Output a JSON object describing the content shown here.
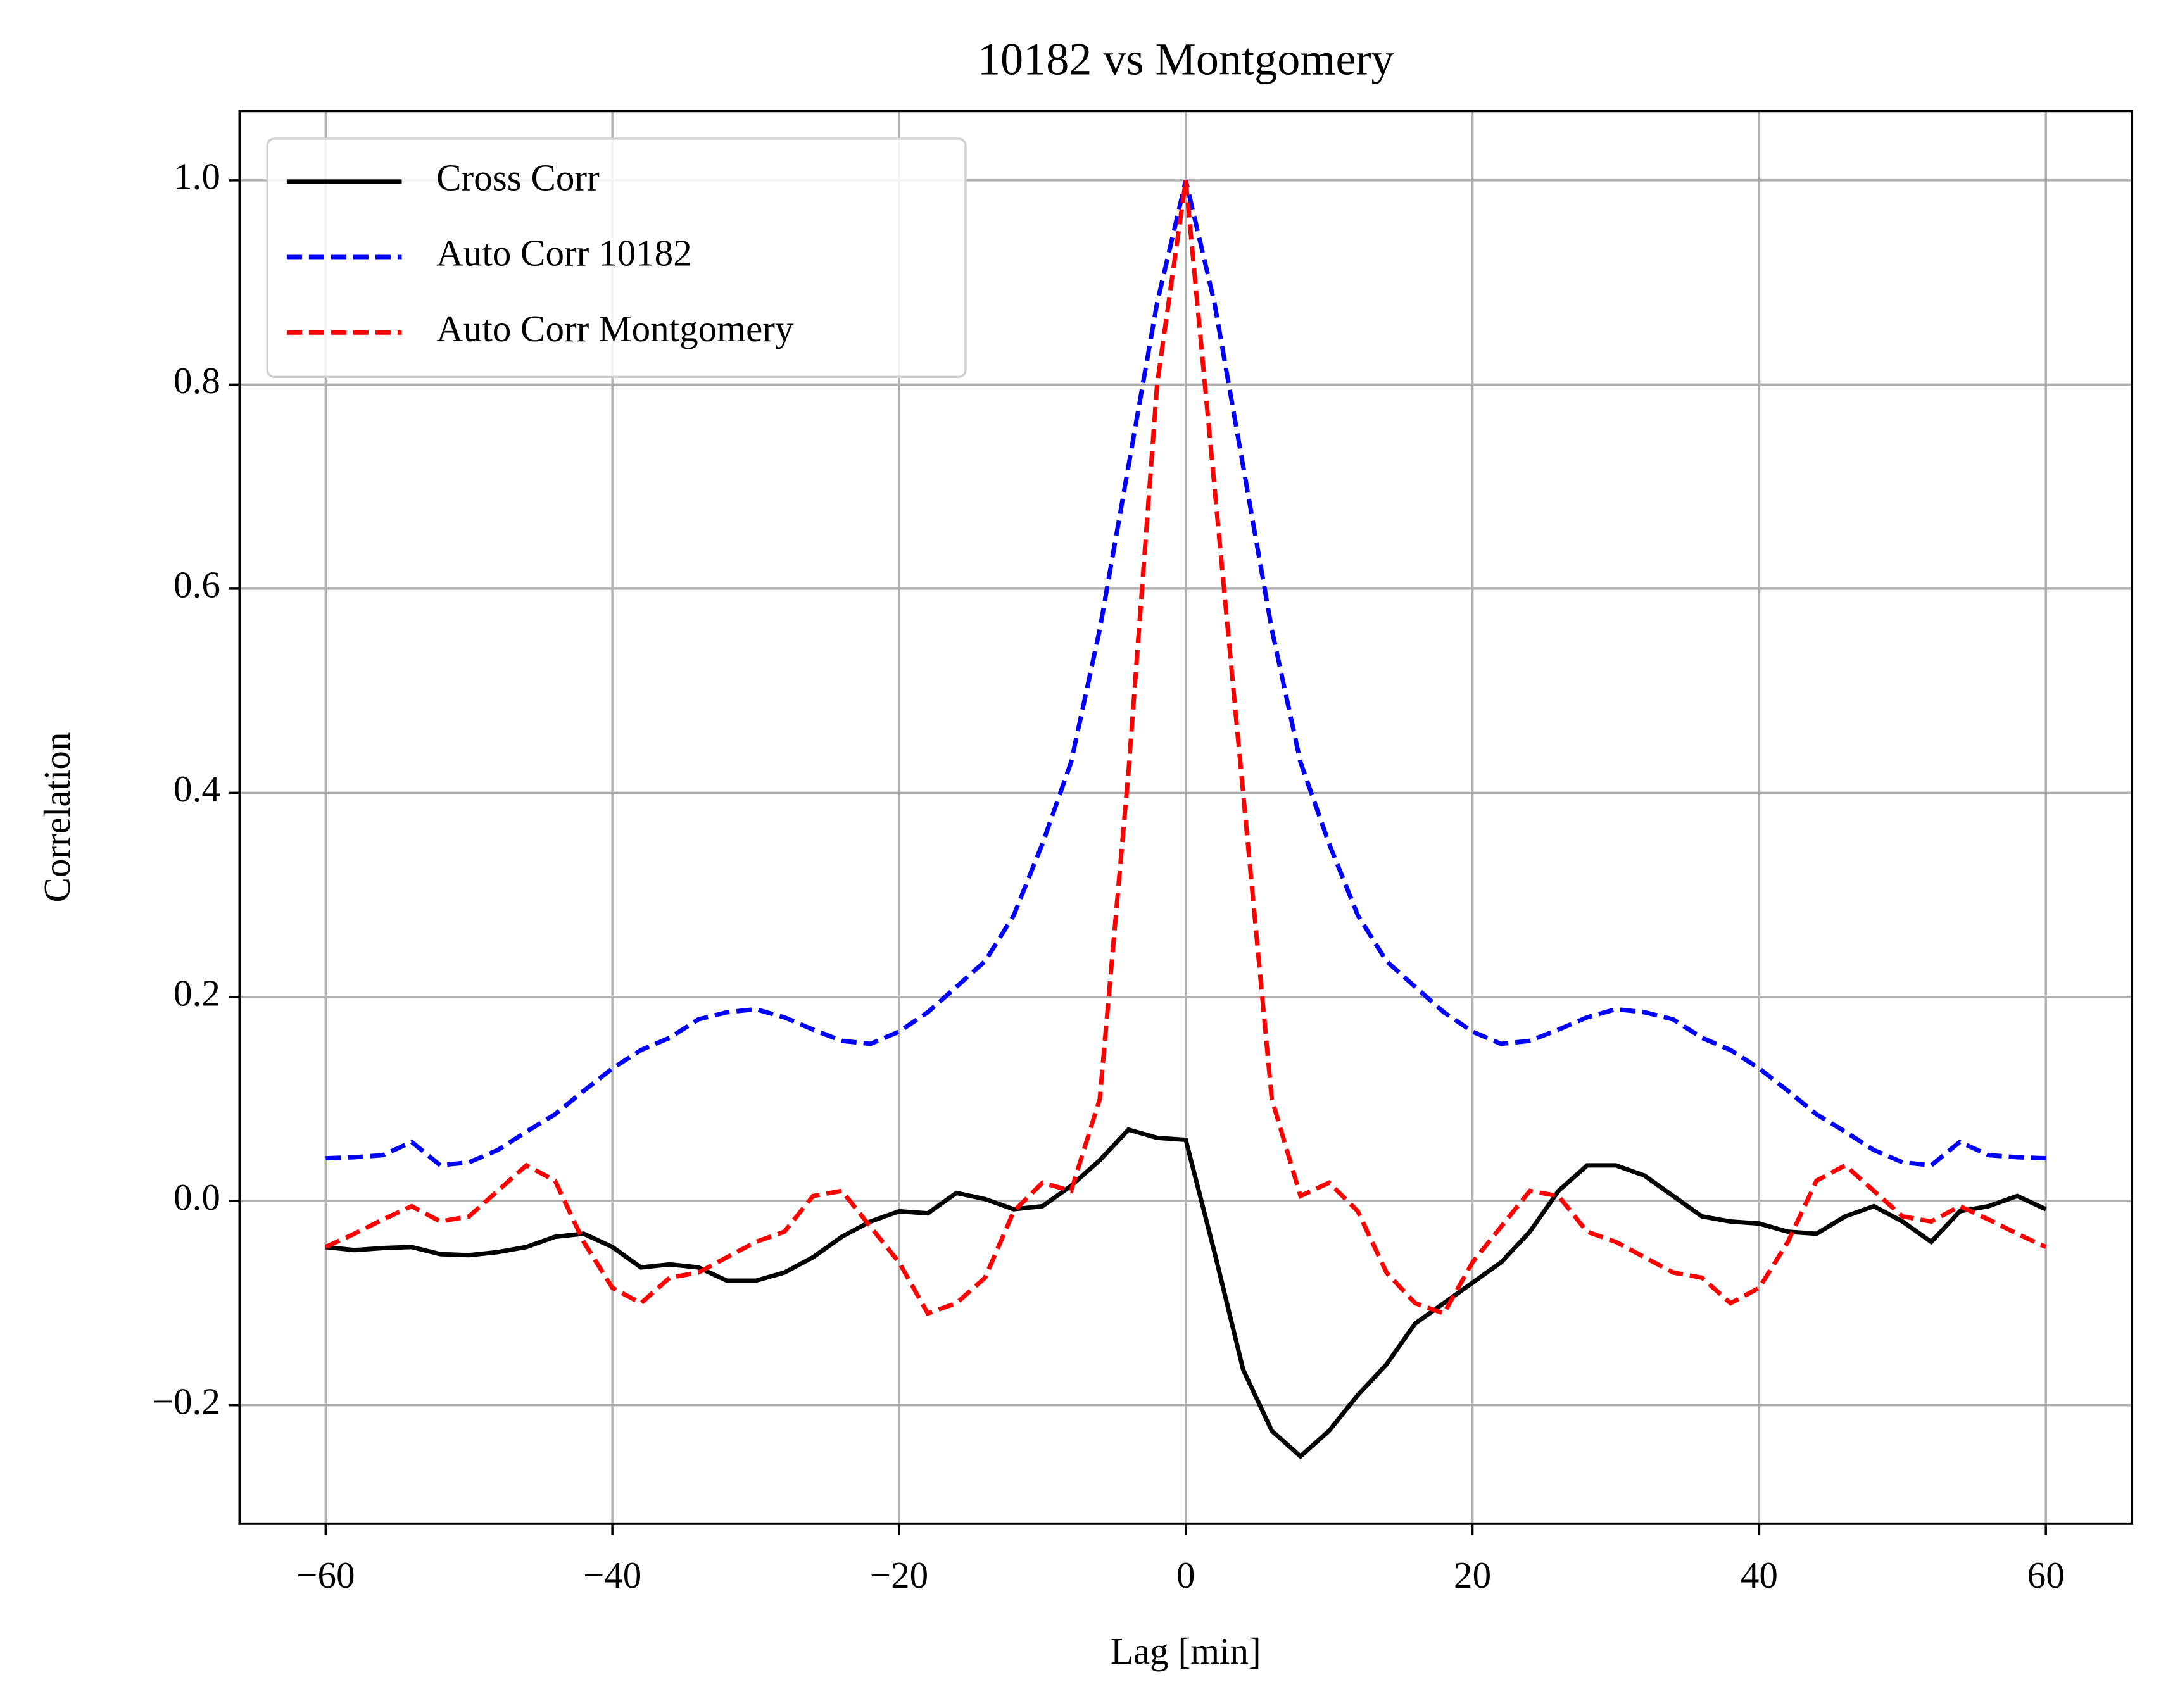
{
  "chart_data": {
    "type": "line",
    "title": "10182 vs Montgomery",
    "xlabel": "Lag [min]",
    "ylabel": "Correlation",
    "x": [
      -60,
      -58,
      -56,
      -54,
      -52,
      -50,
      -48,
      -46,
      -44,
      -42,
      -40,
      -38,
      -36,
      -34,
      -32,
      -30,
      -28,
      -26,
      -24,
      -22,
      -20,
      -18,
      -16,
      -14,
      -12,
      -10,
      -8,
      -6,
      -4,
      -2,
      0,
      2,
      4,
      6,
      8,
      10,
      12,
      14,
      16,
      18,
      20,
      22,
      24,
      26,
      28,
      30,
      32,
      34,
      36,
      38,
      40,
      42,
      44,
      46,
      48,
      50,
      52,
      54,
      56,
      58,
      60
    ],
    "series": [
      {
        "name": "Cross Corr",
        "color": "#000000",
        "linestyle": "solid",
        "values": [
          -0.045,
          -0.048,
          -0.046,
          -0.045,
          -0.052,
          -0.053,
          -0.05,
          -0.045,
          -0.035,
          -0.032,
          -0.045,
          -0.065,
          -0.062,
          -0.065,
          -0.078,
          -0.078,
          -0.07,
          -0.055,
          -0.035,
          -0.02,
          -0.01,
          -0.012,
          0.008,
          0.002,
          -0.008,
          -0.005,
          0.015,
          0.04,
          0.07,
          0.062,
          0.06,
          -0.05,
          -0.165,
          -0.225,
          -0.25,
          -0.225,
          -0.19,
          -0.16,
          -0.12,
          -0.1,
          -0.08,
          -0.06,
          -0.03,
          0.01,
          0.035,
          0.035,
          0.025,
          0.005,
          -0.015,
          -0.02,
          -0.022,
          -0.03,
          -0.032,
          -0.015,
          -0.005,
          -0.02,
          -0.04,
          -0.01,
          -0.005,
          0.005,
          -0.008
        ]
      },
      {
        "name": "Auto Corr 10182",
        "color": "#0000ff",
        "linestyle": "dashed",
        "values": [
          0.042,
          0.043,
          0.045,
          0.058,
          0.035,
          0.038,
          0.05,
          0.068,
          0.085,
          0.108,
          0.13,
          0.148,
          0.16,
          0.178,
          0.185,
          0.188,
          0.18,
          0.168,
          0.157,
          0.154,
          0.166,
          0.185,
          0.21,
          0.235,
          0.28,
          0.35,
          0.43,
          0.56,
          0.72,
          0.88,
          1.0,
          0.88,
          0.72,
          0.56,
          0.43,
          0.35,
          0.28,
          0.235,
          0.21,
          0.185,
          0.166,
          0.154,
          0.157,
          0.168,
          0.18,
          0.188,
          0.185,
          0.178,
          0.16,
          0.148,
          0.13,
          0.108,
          0.085,
          0.068,
          0.05,
          0.038,
          0.035,
          0.058,
          0.045,
          0.043,
          0.042
        ]
      },
      {
        "name": "Auto Corr Montgomery",
        "color": "#ff0000",
        "linestyle": "dashed",
        "values": [
          -0.045,
          -0.032,
          -0.018,
          -0.005,
          -0.02,
          -0.015,
          0.01,
          0.035,
          0.02,
          -0.04,
          -0.085,
          -0.1,
          -0.075,
          -0.07,
          -0.055,
          -0.04,
          -0.03,
          0.005,
          0.01,
          -0.025,
          -0.06,
          -0.11,
          -0.1,
          -0.075,
          -0.01,
          0.018,
          0.01,
          0.1,
          0.42,
          0.8,
          1.0,
          0.7,
          0.4,
          0.1,
          0.005,
          0.018,
          -0.01,
          -0.07,
          -0.1,
          -0.11,
          -0.06,
          -0.025,
          0.01,
          0.005,
          -0.03,
          -0.04,
          -0.055,
          -0.07,
          -0.075,
          -0.1,
          -0.085,
          -0.04,
          0.02,
          0.035,
          0.01,
          -0.015,
          -0.02,
          -0.005,
          -0.018,
          -0.032,
          -0.045
        ]
      }
    ],
    "xlim": [
      -66,
      66
    ],
    "ylim": [
      -0.316,
      1.068
    ],
    "xticks": [
      {
        "value": -60,
        "label": "−60"
      },
      {
        "value": -40,
        "label": "−40"
      },
      {
        "value": -20,
        "label": "−20"
      },
      0,
      20,
      40,
      60
    ],
    "yticks": [
      {
        "value": -0.2,
        "label": "−0.2"
      },
      {
        "value": 0,
        "label": "0.0"
      },
      0.2,
      0.4,
      0.6,
      0.8,
      {
        "value": 1,
        "label": "1.0"
      }
    ],
    "grid": true,
    "legend": "upper left"
  }
}
